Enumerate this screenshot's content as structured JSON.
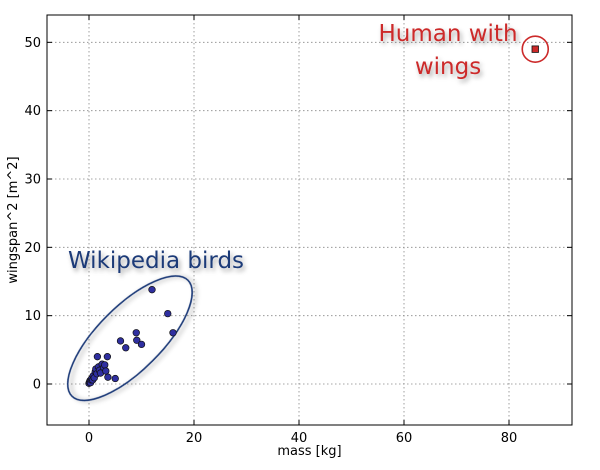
{
  "chart_data": {
    "type": "scatter",
    "title": "",
    "xlabel": "mass [kg]",
    "ylabel": "wingspan^2 [m^2]",
    "xlim": [
      -8,
      92
    ],
    "ylim": [
      -6,
      54
    ],
    "xticks": [
      0,
      20,
      40,
      60,
      80
    ],
    "yticks": [
      0,
      10,
      20,
      30,
      40,
      50
    ],
    "grid": true,
    "colors": {
      "birds": "#2f2fa0",
      "human": "#cc2a2a",
      "birds_annotation": "#1f3a78",
      "human_annotation": "#cc2a2a"
    },
    "series": [
      {
        "marker": "circle",
        "points": [
          {
            "x": 0.0,
            "y": 0.1
          },
          {
            "x": 0.1,
            "y": 0.3
          },
          {
            "x": 0.2,
            "y": 0.5
          },
          {
            "x": 0.3,
            "y": 0.2
          },
          {
            "x": 0.4,
            "y": 0.6
          },
          {
            "x": 0.5,
            "y": 0.8
          },
          {
            "x": 0.7,
            "y": 0.6
          },
          {
            "x": 0.8,
            "y": 1.2
          },
          {
            "x": 1.0,
            "y": 0.9
          },
          {
            "x": 1.2,
            "y": 1.8
          },
          {
            "x": 1.3,
            "y": 2.2
          },
          {
            "x": 1.5,
            "y": 1.5
          },
          {
            "x": 1.6,
            "y": 4.0
          },
          {
            "x": 1.8,
            "y": 2.5
          },
          {
            "x": 2.0,
            "y": 2.0
          },
          {
            "x": 2.2,
            "y": 1.6
          },
          {
            "x": 2.5,
            "y": 2.9
          },
          {
            "x": 2.8,
            "y": 2.4
          },
          {
            "x": 3.0,
            "y": 2.8
          },
          {
            "x": 3.2,
            "y": 1.9
          },
          {
            "x": 3.5,
            "y": 4.0
          },
          {
            "x": 3.6,
            "y": 1.0
          },
          {
            "x": 5.0,
            "y": 0.8
          },
          {
            "x": 6.0,
            "y": 6.3
          },
          {
            "x": 7.0,
            "y": 5.3
          },
          {
            "x": 9.0,
            "y": 7.5
          },
          {
            "x": 9.1,
            "y": 6.4
          },
          {
            "x": 10.0,
            "y": 5.8
          },
          {
            "x": 12.0,
            "y": 13.8
          },
          {
            "x": 15.0,
            "y": 10.3
          },
          {
            "x": 16.0,
            "y": 7.5
          }
        ]
      },
      {
        "marker": "square",
        "points": [
          {
            "x": 85,
            "y": 49
          }
        ]
      }
    ],
    "annotations": {
      "birds": {
        "label": "Wikipedia birds"
      },
      "human": {
        "label_line1": "Human with",
        "label_line2": "wings"
      }
    }
  }
}
